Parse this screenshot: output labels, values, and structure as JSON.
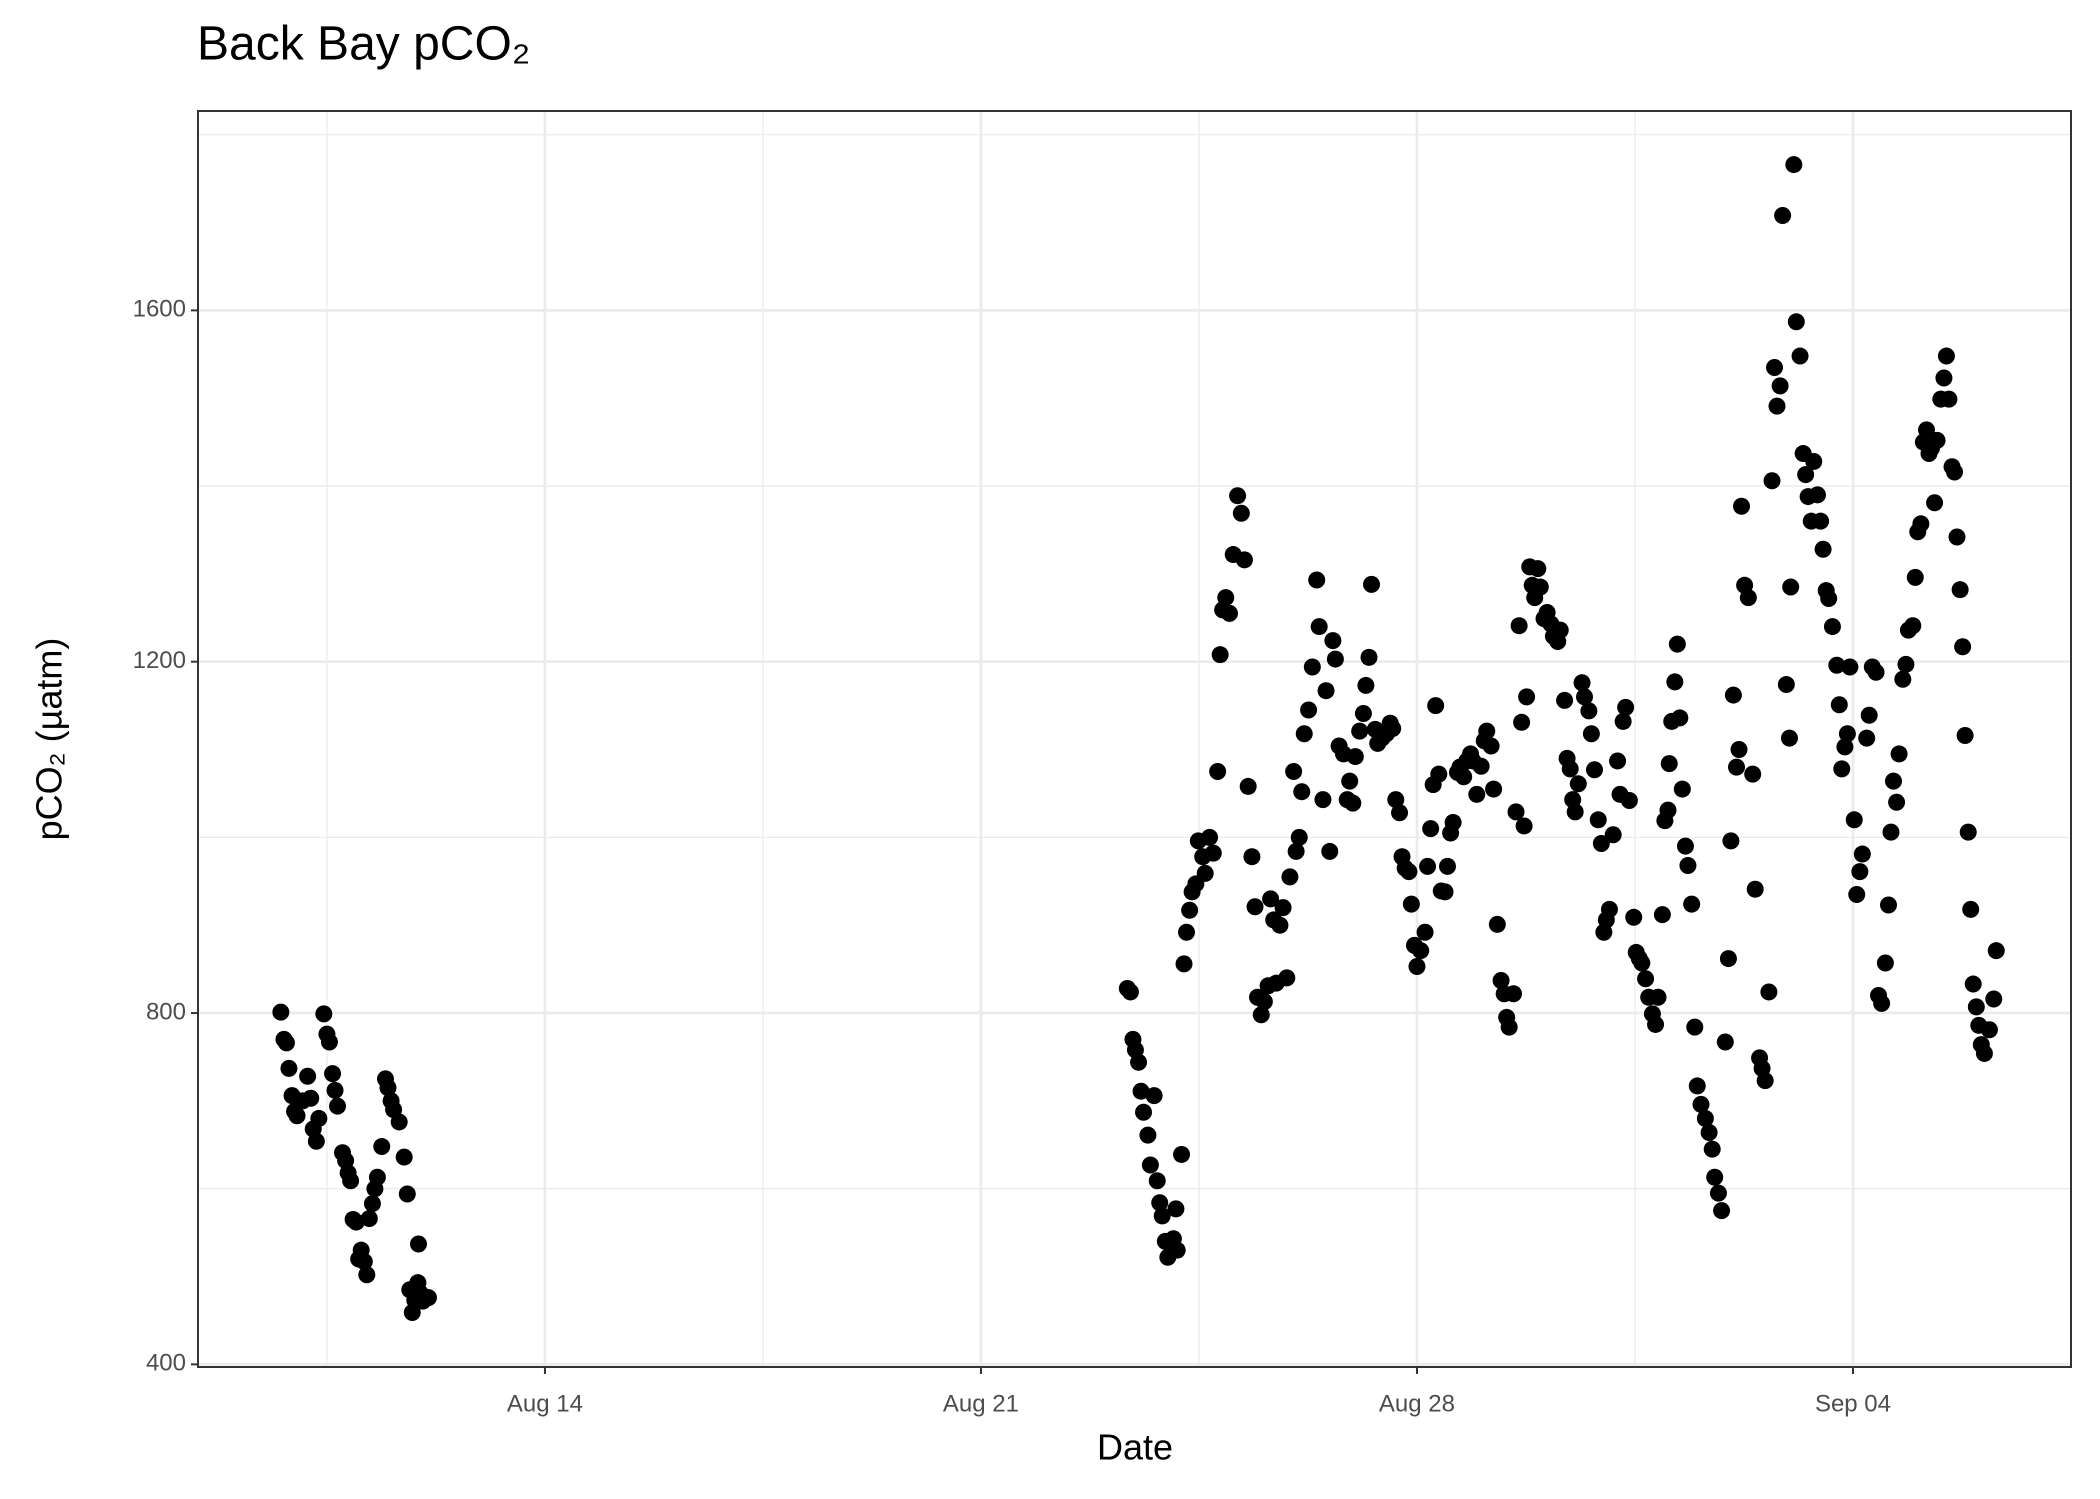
{
  "chart_data": {
    "type": "scatter",
    "title": "Back Bay pCO₂",
    "x_label": "Date",
    "y_label": "pCO₂ (µatm)",
    "color": "#000000",
    "grid": true,
    "xlim": [
      8.43,
      38.5
    ],
    "ylim": [
      397,
      1827
    ],
    "xticks": [
      {
        "value": 14,
        "label": "Aug 14"
      },
      {
        "value": 21,
        "label": "Aug 21"
      },
      {
        "value": 28,
        "label": "Aug 28"
      },
      {
        "value": 35,
        "label": "Sep 04"
      }
    ],
    "minor_xticks": [
      10.5,
      17.5,
      24.5,
      31.5
    ],
    "yticks": [
      400,
      800,
      1200,
      1600
    ],
    "minor_yticks": [
      600,
      1000,
      1400,
      1800
    ],
    "x": [
      9.76,
      9.81,
      9.85,
      9.89,
      9.94,
      9.98,
      10.02,
      10.11,
      10.19,
      10.24,
      10.28,
      10.33,
      10.37,
      10.45,
      10.5,
      10.54,
      10.59,
      10.63,
      10.67,
      10.75,
      10.8,
      10.84,
      10.88,
      10.92,
      10.97,
      11.01,
      11.05,
      11.1,
      11.14,
      11.18,
      11.23,
      11.27,
      11.31,
      11.38,
      11.44,
      11.48,
      11.53,
      11.57,
      11.66,
      11.74,
      11.79,
      11.83,
      11.87,
      11.91,
      11.96,
      12.0,
      12.04,
      12.13,
      11.97,
      23.35,
      23.4,
      23.44,
      23.48,
      23.53,
      23.57,
      23.61,
      23.68,
      23.72,
      23.78,
      23.83,
      23.87,
      23.91,
      23.96,
      24.0,
      24.09,
      24.15,
      24.13,
      24.22,
      24.26,
      24.3,
      24.35,
      24.39,
      24.45,
      24.49,
      24.56,
      24.6,
      24.67,
      24.73,
      24.8,
      24.84,
      24.88,
      24.93,
      24.99,
      25.05,
      25.12,
      25.18,
      25.23,
      25.29,
      25.35,
      25.4,
      25.44,
      25.5,
      25.55,
      25.61,
      25.65,
      25.7,
      25.74,
      25.8,
      25.85,
      25.91,
      25.96,
      26.02,
      26.06,
      26.11,
      26.15,
      26.19,
      26.26,
      26.32,
      26.39,
      26.43,
      26.49,
      26.54,
      26.6,
      26.65,
      26.69,
      26.75,
      26.82,
      26.88,
      26.92,
      26.97,
      27.01,
      27.08,
      27.14,
      27.18,
      27.23,
      27.27,
      27.33,
      27.37,
      27.44,
      27.51,
      27.57,
      27.61,
      27.66,
      27.72,
      27.76,
      27.81,
      27.87,
      27.91,
      27.96,
      28.0,
      28.06,
      28.13,
      28.17,
      28.22,
      28.26,
      28.3,
      28.35,
      28.39,
      28.45,
      28.49,
      28.54,
      28.58,
      28.65,
      28.69,
      28.75,
      28.8,
      28.86,
      28.9,
      28.96,
      29.03,
      29.08,
      29.12,
      29.19,
      29.23,
      29.29,
      29.35,
      29.4,
      29.44,
      29.48,
      29.55,
      29.59,
      29.64,
      29.68,
      29.72,
      29.76,
      29.81,
      29.85,
      29.89,
      29.94,
      29.98,
      30.04,
      30.09,
      30.15,
      30.19,
      30.26,
      30.3,
      30.37,
      30.41,
      30.46,
      30.5,
      30.54,
      30.59,
      30.65,
      30.69,
      30.76,
      30.8,
      30.85,
      30.91,
      30.96,
      31.0,
      31.04,
      31.09,
      31.15,
      31.22,
      31.26,
      31.31,
      31.35,
      31.41,
      31.48,
      31.52,
      31.57,
      31.61,
      31.67,
      31.72,
      31.78,
      31.83,
      31.87,
      31.94,
      31.98,
      32.03,
      32.05,
      32.09,
      32.14,
      32.18,
      32.22,
      32.26,
      32.31,
      32.35,
      32.41,
      32.46,
      32.5,
      32.56,
      32.63,
      32.69,
      32.74,
      32.78,
      32.84,
      32.89,
      32.95,
      33.0,
      33.04,
      33.08,
      33.13,
      33.17,
      33.21,
      33.26,
      33.32,
      33.39,
      33.43,
      33.5,
      33.54,
      33.59,
      33.65,
      33.7,
      33.74,
      33.78,
      33.83,
      33.87,
      33.93,
      33.98,
      34.0,
      34.05,
      34.09,
      34.15,
      34.2,
      34.24,
      34.28,
      34.33,
      34.37,
      34.43,
      34.48,
      34.52,
      34.57,
      34.61,
      34.67,
      34.74,
      34.78,
      34.82,
      34.87,
      34.91,
      34.95,
      35.02,
      35.06,
      35.11,
      35.15,
      35.22,
      35.26,
      35.31,
      35.37,
      35.41,
      35.46,
      35.52,
      35.57,
      35.61,
      35.65,
      35.7,
      35.74,
      35.8,
      35.85,
      35.89,
      35.96,
      36.0,
      36.04,
      36.09,
      36.13,
      36.18,
      36.22,
      36.26,
      36.31,
      36.35,
      36.41,
      36.46,
      36.5,
      36.54,
      36.59,
      36.63,
      36.67,
      36.72,
      36.76,
      36.8,
      36.85,
      36.89,
      36.93,
      36.98,
      37.02,
      37.06,
      37.11,
      37.19,
      37.26,
      37.3
    ],
    "values": [
      801,
      770,
      766,
      737,
      706,
      688,
      683,
      700,
      728,
      703,
      668,
      654,
      680,
      799,
      776,
      767,
      731,
      712,
      694,
      641,
      632,
      618,
      609,
      565,
      562,
      520,
      530,
      517,
      502,
      566,
      583,
      600,
      613,
      648,
      725,
      715,
      700,
      690,
      676,
      636,
      594,
      485,
      459,
      473,
      493,
      481,
      472,
      476,
      537,
      828,
      824,
      770,
      758,
      744,
      711,
      687,
      661,
      627,
      706,
      609,
      584,
      569,
      540,
      522,
      543,
      530,
      577,
      639,
      856,
      892,
      917,
      938,
      947,
      996,
      978,
      959,
      1000,
      982,
      1075,
      1208,
      1259,
      1273,
      1255,
      1322,
      1389,
      1369,
      1316,
      1058,
      978,
      921,
      818,
      798,
      813,
      831,
      930,
      906,
      834,
      900,
      920,
      840,
      955,
      1075,
      984,
      1000,
      1052,
      1118,
      1145,
      1194,
      1293,
      1240,
      1043,
      1167,
      984,
      1224,
      1203,
      1104,
      1095,
      1043,
      1064,
      1039,
      1092,
      1121,
      1141,
      1173,
      1205,
      1288,
      1123,
      1107,
      1113,
      1118,
      1130,
      1124,
      1043,
      1028,
      978,
      965,
      961,
      924,
      877,
      853,
      871,
      892,
      967,
      1010,
      1060,
      1150,
      1072,
      939,
      938,
      967,
      1005,
      1017,
      1074,
      1080,
      1069,
      1087,
      1095,
      1087,
      1049,
      1081,
      1110,
      1121,
      1104,
      1055,
      901,
      837,
      822,
      795,
      784,
      822,
      1029,
      1241,
      1131,
      1013,
      1160,
      1308,
      1287,
      1273,
      1306,
      1285,
      1249,
      1256,
      1243,
      1229,
      1223,
      1236,
      1156,
      1090,
      1078,
      1043,
      1029,
      1061,
      1176,
      1160,
      1144,
      1118,
      1077,
      1020,
      993,
      892,
      906,
      918,
      1003,
      1087,
      1049,
      1132,
      1148,
      1042,
      909,
      869,
      862,
      857,
      839,
      818,
      799,
      787,
      818,
      912,
      1019,
      1031,
      1084,
      1132,
      1177,
      1220,
      1136,
      1055,
      990,
      968,
      924,
      784,
      717,
      696,
      680,
      664,
      645,
      613,
      595,
      575,
      767,
      862,
      996,
      1162,
      1080,
      1100,
      1377,
      1287,
      1273,
      1072,
      941,
      749,
      737,
      723,
      824,
      1406,
      1535,
      1491,
      1514,
      1708,
      1174,
      1113,
      1285,
      1766,
      1587,
      1548,
      1437,
      1413,
      1388,
      1360,
      1428,
      1390,
      1360,
      1328,
      1281,
      1272,
      1240,
      1196,
      1151,
      1078,
      1103,
      1118,
      1194,
      1020,
      935,
      961,
      981,
      1113,
      1139,
      1194,
      1188,
      820,
      811,
      857,
      923,
      1006,
      1064,
      1040,
      1095,
      1180,
      1197,
      1236,
      1241,
      1296,
      1348,
      1357,
      1450,
      1464,
      1437,
      1443,
      1381,
      1452,
      1499,
      1523,
      1548,
      1499,
      1422,
      1416,
      1342,
      1282,
      1217,
      1116,
      1006,
      918,
      833,
      807,
      786,
      764,
      754,
      781,
      816,
      871
    ]
  }
}
